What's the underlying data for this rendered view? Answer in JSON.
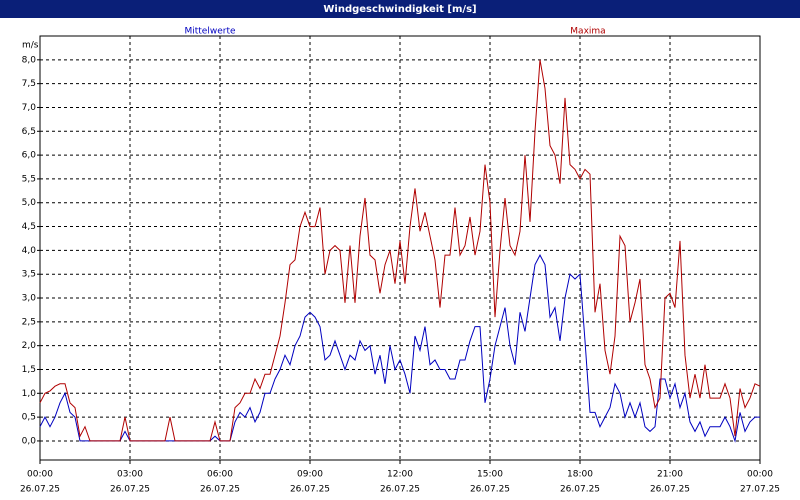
{
  "chart_data": {
    "type": "line",
    "title": "Windgeschwindigkeit [m/s]",
    "y_unit": "m/s",
    "xlim": [
      0,
      1440
    ],
    "ylim": [
      -0.4,
      8.5
    ],
    "xticks": [
      {
        "value": 0,
        "label": "00:00",
        "date": "26.07.25"
      },
      {
        "value": 180,
        "label": "03:00",
        "date": "26.07.25"
      },
      {
        "value": 360,
        "label": "06:00",
        "date": "26.07.25"
      },
      {
        "value": 540,
        "label": "09:00",
        "date": "26.07.25"
      },
      {
        "value": 720,
        "label": "12:00",
        "date": "26.07.25"
      },
      {
        "value": 900,
        "label": "15:00",
        "date": "26.07.25"
      },
      {
        "value": 1080,
        "label": "18:00",
        "date": "26.07.25"
      },
      {
        "value": 1260,
        "label": "21:00",
        "date": "26.07.25"
      },
      {
        "value": 1440,
        "label": "00:00",
        "date": "27.07.25"
      }
    ],
    "yticks": [
      {
        "value": 0,
        "label": "0,0"
      },
      {
        "value": 0.5,
        "label": "0,5"
      },
      {
        "value": 1,
        "label": "1,0"
      },
      {
        "value": 1.5,
        "label": "1,5"
      },
      {
        "value": 2,
        "label": "2,0"
      },
      {
        "value": 2.5,
        "label": "2,5"
      },
      {
        "value": 3,
        "label": "3,0"
      },
      {
        "value": 3.5,
        "label": "3,5"
      },
      {
        "value": 4,
        "label": "4,0"
      },
      {
        "value": 4.5,
        "label": "4,5"
      },
      {
        "value": 5,
        "label": "5,0"
      },
      {
        "value": 5.5,
        "label": "5,5"
      },
      {
        "value": 6,
        "label": "6,0"
      },
      {
        "value": 6.5,
        "label": "6,5"
      },
      {
        "value": 7,
        "label": "7,0"
      },
      {
        "value": 7.5,
        "label": "7,5"
      },
      {
        "value": 8,
        "label": "8,0"
      }
    ],
    "grid": true,
    "x": [
      0,
      10,
      20,
      30,
      40,
      50,
      60,
      70,
      80,
      90,
      100,
      110,
      120,
      130,
      140,
      150,
      160,
      170,
      180,
      190,
      200,
      210,
      220,
      230,
      240,
      250,
      260,
      270,
      280,
      290,
      300,
      310,
      320,
      330,
      340,
      350,
      360,
      370,
      380,
      390,
      400,
      410,
      420,
      430,
      440,
      450,
      460,
      470,
      480,
      490,
      500,
      510,
      520,
      530,
      540,
      550,
      560,
      570,
      580,
      590,
      600,
      610,
      620,
      630,
      640,
      650,
      660,
      670,
      680,
      690,
      700,
      710,
      720,
      730,
      740,
      750,
      760,
      770,
      780,
      790,
      800,
      810,
      820,
      830,
      840,
      850,
      860,
      870,
      880,
      890,
      900,
      910,
      920,
      930,
      940,
      950,
      960,
      970,
      980,
      990,
      1000,
      1010,
      1020,
      1030,
      1040,
      1050,
      1060,
      1070,
      1080,
      1090,
      1100,
      1110,
      1120,
      1130,
      1140,
      1150,
      1160,
      1170,
      1180,
      1190,
      1200,
      1210,
      1220,
      1230,
      1240,
      1250,
      1260,
      1270,
      1280,
      1290,
      1300,
      1310,
      1320,
      1330,
      1340,
      1350,
      1360,
      1370,
      1380,
      1390,
      1400,
      1410,
      1420,
      1430,
      1440
    ],
    "series": [
      {
        "name": "Mittelwerte",
        "color": "#0000c0",
        "values": [
          0.3,
          0.5,
          0.3,
          0.5,
          0.8,
          1.0,
          0.6,
          0.5,
          0,
          0,
          0,
          0,
          0,
          0,
          0,
          0,
          0,
          0.2,
          0,
          0,
          0,
          0,
          0,
          0,
          0,
          0,
          0,
          0,
          0,
          0,
          0,
          0,
          0,
          0,
          0,
          0.1,
          0,
          0,
          0,
          0.4,
          0.6,
          0.5,
          0.7,
          0.4,
          0.6,
          1.0,
          1.0,
          1.3,
          1.5,
          1.8,
          1.6,
          2.0,
          2.2,
          2.6,
          2.7,
          2.6,
          2.4,
          1.7,
          1.8,
          2.1,
          1.8,
          1.5,
          1.8,
          1.7,
          2.1,
          1.9,
          2.0,
          1.4,
          1.8,
          1.2,
          2.0,
          1.5,
          1.7,
          1.4,
          1.0,
          2.2,
          1.9,
          2.4,
          1.6,
          1.7,
          1.5,
          1.5,
          1.3,
          1.3,
          1.7,
          1.7,
          2.1,
          2.4,
          2.4,
          0.8,
          1.3,
          2.0,
          2.4,
          2.8,
          2.0,
          1.6,
          2.7,
          2.3,
          3.0,
          3.7,
          3.9,
          3.7,
          2.6,
          2.8,
          2.1,
          3.0,
          3.5,
          3.4,
          3.5,
          2.1,
          0.6,
          0.6,
          0.3,
          0.5,
          0.7,
          1.2,
          1.0,
          0.5,
          0.8,
          0.5,
          0.8,
          0.3,
          0.2,
          0.3,
          1.3,
          1.3,
          0.9,
          1.2,
          0.7,
          1.0,
          0.4,
          0.2,
          0.4,
          0.1,
          0.3,
          0.3,
          0.3,
          0.5,
          0.3,
          0.0,
          0.6,
          0.2,
          0.4,
          0.5,
          0.5
        ]
      },
      {
        "name": "Maxima",
        "color": "#b00000",
        "values": [
          0.8,
          1.0,
          1.05,
          1.15,
          1.2,
          1.2,
          0.8,
          0.7,
          0.1,
          0.3,
          0,
          0,
          0,
          0,
          0,
          0,
          0,
          0.5,
          0,
          0,
          0,
          0,
          0,
          0,
          0,
          0,
          0.5,
          0,
          0,
          0,
          0,
          0,
          0,
          0,
          0,
          0.4,
          0,
          0,
          0,
          0.7,
          0.8,
          1.0,
          1.0,
          1.3,
          1.1,
          1.4,
          1.4,
          1.8,
          2.2,
          2.9,
          3.7,
          3.8,
          4.5,
          4.8,
          4.5,
          4.5,
          4.9,
          3.5,
          4.0,
          4.1,
          4.0,
          2.9,
          4.1,
          2.9,
          4.3,
          5.1,
          3.9,
          3.8,
          3.1,
          3.7,
          4.0,
          3.3,
          4.2,
          3.3,
          4.5,
          5.3,
          4.4,
          4.8,
          4.3,
          3.8,
          2.8,
          3.9,
          3.9,
          4.9,
          3.9,
          4.1,
          4.7,
          3.9,
          4.4,
          5.8,
          5.0,
          2.6,
          4.0,
          5.1,
          4.1,
          3.9,
          4.4,
          6.0,
          4.6,
          6.5,
          8.0,
          7.4,
          6.2,
          6.0,
          5.4,
          7.2,
          5.8,
          5.7,
          5.5,
          5.7,
          5.6,
          2.7,
          3.3,
          1.9,
          1.4,
          2.2,
          4.3,
          4.1,
          2.5,
          2.9,
          3.4,
          1.6,
          1.3,
          0.7,
          0.9,
          3.0,
          3.1,
          2.8,
          4.2,
          1.8,
          0.9,
          1.4,
          0.9,
          1.6,
          0.9,
          0.9,
          0.9,
          1.2,
          0.9,
          0.1,
          1.1,
          0.7,
          0.9,
          1.2,
          1.15
        ]
      }
    ]
  }
}
